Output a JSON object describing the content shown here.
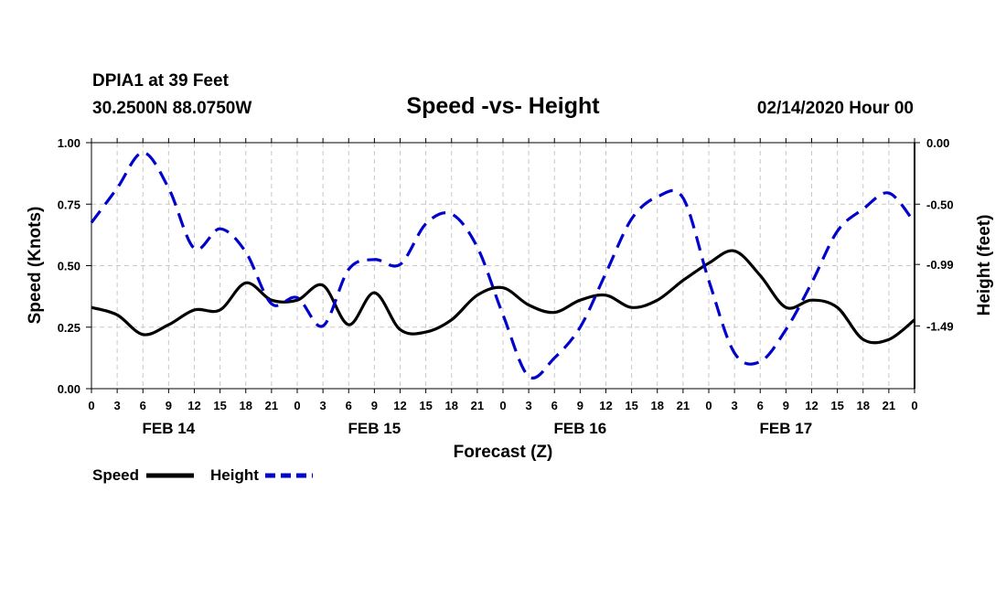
{
  "header": {
    "station": "DPIA1 at 39 Feet",
    "location": "30.2500N 88.0750W",
    "datetime": "02/14/2020 Hour 00"
  },
  "chart_data": {
    "type": "line",
    "title": "Speed -vs- Height",
    "xlabel": "Forecast (Z)",
    "ylabel_left": "Speed (Knots)",
    "ylabel_right": "Height (feet)",
    "x_unit": "hours since 02/14/2020 00Z",
    "xlim": [
      0,
      96
    ],
    "ylim_left": [
      0.0,
      1.0
    ],
    "ylim_right": [
      -2.0,
      0.0
    ],
    "left_ticks": [
      "1.00",
      "0.75",
      "0.50",
      "0.25",
      "0.00"
    ],
    "left_tick_values": [
      1.0,
      0.75,
      0.5,
      0.25,
      0.0
    ],
    "right_ticks": [
      "0.00",
      "-0.50",
      "-0.99",
      "-1.49"
    ],
    "right_tick_values": [
      0.0,
      -0.5,
      -0.99,
      -1.49
    ],
    "x_ticks": [
      "0",
      "3",
      "6",
      "9",
      "12",
      "15",
      "18",
      "21",
      "0",
      "3",
      "6",
      "9",
      "12",
      "15",
      "18",
      "21",
      "0",
      "3",
      "6",
      "9",
      "12",
      "15",
      "18",
      "21",
      "0",
      "3",
      "6",
      "9",
      "12",
      "15",
      "18",
      "21",
      "0"
    ],
    "day_labels": [
      {
        "label": "FEB 14",
        "hour": 9
      },
      {
        "label": "FEB 15",
        "hour": 33
      },
      {
        "label": "FEB 16",
        "hour": 57
      },
      {
        "label": "FEB 17",
        "hour": 81
      }
    ],
    "grid": true,
    "series": [
      {
        "name": "Speed",
        "axis": "left",
        "color": "#000000",
        "style": "solid",
        "points": [
          [
            0,
            0.33
          ],
          [
            3,
            0.3
          ],
          [
            6,
            0.22
          ],
          [
            9,
            0.26
          ],
          [
            12,
            0.32
          ],
          [
            15,
            0.32
          ],
          [
            18,
            0.43
          ],
          [
            21,
            0.36
          ],
          [
            24,
            0.36
          ],
          [
            27,
            0.42
          ],
          [
            30,
            0.26
          ],
          [
            33,
            0.39
          ],
          [
            36,
            0.24
          ],
          [
            39,
            0.23
          ],
          [
            42,
            0.28
          ],
          [
            45,
            0.38
          ],
          [
            48,
            0.41
          ],
          [
            51,
            0.34
          ],
          [
            54,
            0.31
          ],
          [
            57,
            0.36
          ],
          [
            60,
            0.38
          ],
          [
            63,
            0.33
          ],
          [
            66,
            0.36
          ],
          [
            69,
            0.44
          ],
          [
            72,
            0.51
          ],
          [
            75,
            0.56
          ],
          [
            78,
            0.46
          ],
          [
            81,
            0.33
          ],
          [
            84,
            0.36
          ],
          [
            87,
            0.33
          ],
          [
            90,
            0.2
          ],
          [
            93,
            0.2
          ],
          [
            96,
            0.28
          ]
        ]
      },
      {
        "name": "Height",
        "axis": "right",
        "color": "#0000cc",
        "style": "dashed",
        "points": [
          [
            0,
            -0.65
          ],
          [
            3,
            -0.37
          ],
          [
            6,
            -0.08
          ],
          [
            9,
            -0.37
          ],
          [
            12,
            -0.86
          ],
          [
            15,
            -0.7
          ],
          [
            18,
            -0.89
          ],
          [
            21,
            -1.31
          ],
          [
            24,
            -1.26
          ],
          [
            27,
            -1.49
          ],
          [
            30,
            -1.03
          ],
          [
            33,
            -0.95
          ],
          [
            36,
            -0.99
          ],
          [
            39,
            -0.66
          ],
          [
            42,
            -0.58
          ],
          [
            45,
            -0.85
          ],
          [
            48,
            -1.4
          ],
          [
            51,
            -1.9
          ],
          [
            54,
            -1.75
          ],
          [
            57,
            -1.5
          ],
          [
            60,
            -1.06
          ],
          [
            63,
            -0.62
          ],
          [
            66,
            -0.44
          ],
          [
            69,
            -0.45
          ],
          [
            72,
            -1.12
          ],
          [
            75,
            -1.71
          ],
          [
            78,
            -1.78
          ],
          [
            81,
            -1.52
          ],
          [
            84,
            -1.14
          ],
          [
            87,
            -0.72
          ],
          [
            90,
            -0.54
          ],
          [
            93,
            -0.41
          ],
          [
            96,
            -0.65
          ]
        ]
      }
    ],
    "legend": [
      {
        "label": "Speed",
        "color": "#000000",
        "style": "solid"
      },
      {
        "label": "Height",
        "color": "#0000cc",
        "style": "dashed"
      }
    ],
    "legend_position": "bottom-left"
  }
}
